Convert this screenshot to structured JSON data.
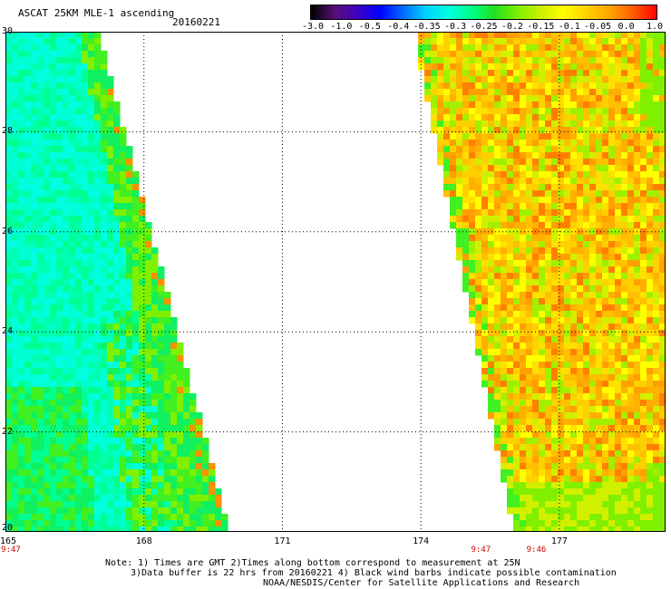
{
  "header": {
    "title": "ASCAT 25KM MLE-1 ascending",
    "date": "20160221"
  },
  "colorbar": {
    "ticks": [
      "-3.0",
      "-1.0",
      "-0.5",
      "-0.4",
      "-0.35",
      "-0.3",
      "-0.25",
      "-0.2",
      "-0.15",
      "-0.1",
      "-0.05",
      "0.0",
      "1.0"
    ]
  },
  "map": {
    "lat_range": [
      20,
      30
    ],
    "lon_range": [
      165,
      179.3
    ],
    "lat_labels": [
      "30",
      "28",
      "26",
      "24",
      "22",
      "20"
    ],
    "lon_labels": [
      "165",
      "168",
      "171",
      "174",
      "177"
    ],
    "time_labels": [
      {
        "lon": 165,
        "text": "9:47"
      },
      {
        "lon": 175.3,
        "text": "9:47"
      },
      {
        "lon": 176.5,
        "text": "9:46"
      }
    ]
  },
  "notes": {
    "line1": "Note: 1) Times are GMT 2)Times along bottom correspond to measurement at 25N",
    "line2": "3)Data buffer is 22 hrs from 20160221 4) Black wind barbs indicate possible contamination",
    "line3": "NOAA/NESDIS/Center for Satellite Applications and Research"
  },
  "colors": {
    "west_swath_main": "#00ffe0",
    "east_swath_main": "#ffd000",
    "time_label": "#cc0000"
  }
}
